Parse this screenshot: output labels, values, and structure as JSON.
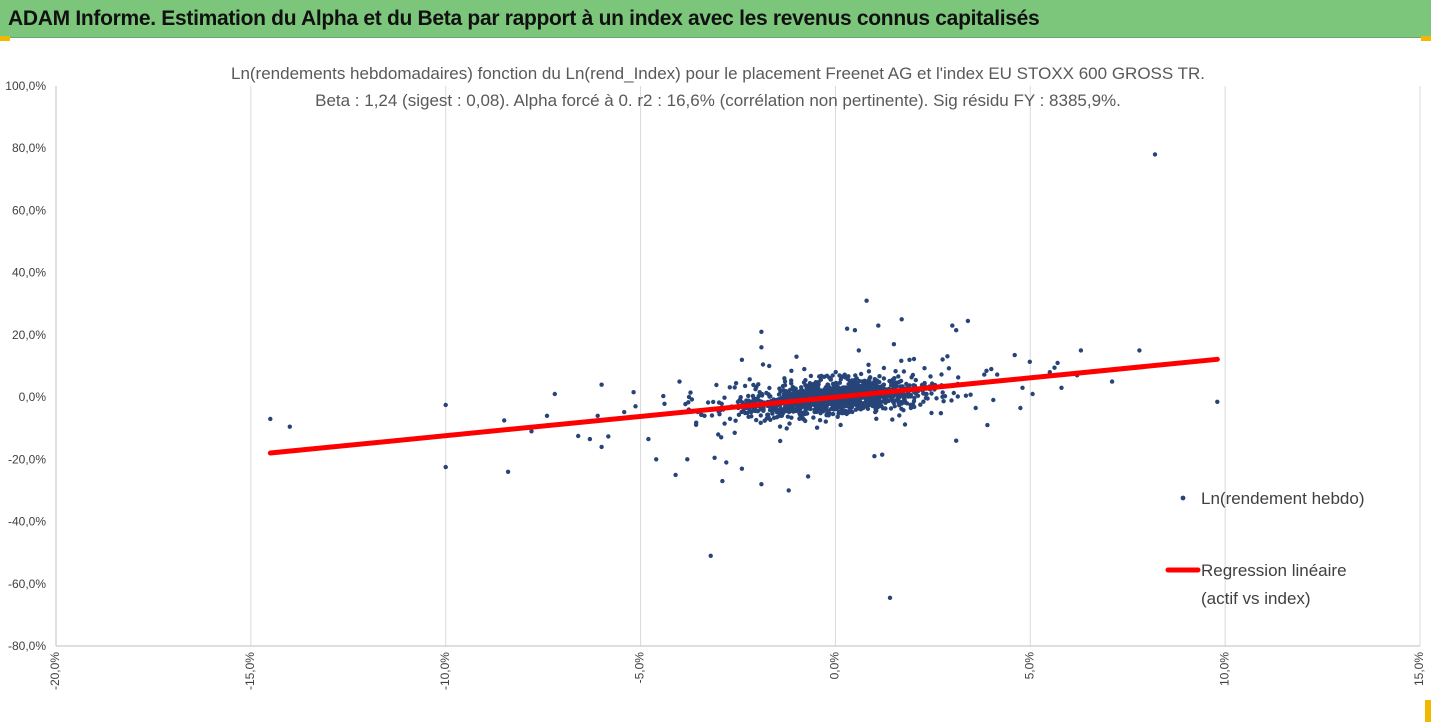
{
  "banner": {
    "title": "ADAM Informe. Estimation du Alpha et du Beta par rapport à un index avec les revenus connus capitalisés"
  },
  "colors": {
    "banner": "#7cc67b",
    "points": "#264478",
    "regression": "#ff0000",
    "corner_accent": "#f2b800"
  },
  "chart_data": {
    "type": "scatter",
    "title": "Ln(rendements hebdomadaires) fonction du Ln(rend_Index) pour le placement Freenet AG et l'index EU STOXX 600 GROSS TR.",
    "subtitle": "Beta : 1,24 (sigest : 0,08). Alpha forcé à 0. r2 : 16,6% (corrélation non pertinente). Sig résidu FY : 8385,9%.",
    "xlabel": "",
    "ylabel": "",
    "xlim": [
      -0.2,
      0.15
    ],
    "ylim": [
      -0.8,
      1.0
    ],
    "grid": "vertical",
    "legend_position": "right",
    "x_ticks": [
      -0.2,
      -0.15,
      -0.1,
      -0.05,
      0.0,
      0.05,
      0.1,
      0.15
    ],
    "x_tick_labels": [
      "-20,0%",
      "-15,0%",
      "-10,0%",
      "-5,0%",
      "0,0%",
      "5,0%",
      "10,0%",
      "15,0%"
    ],
    "y_ticks": [
      1.0,
      0.8,
      0.6,
      0.4,
      0.2,
      0.0,
      -0.2,
      -0.4,
      -0.6,
      -0.8
    ],
    "y_tick_labels": [
      "100,0%",
      "80,0%",
      "60,0%",
      "40,0%",
      "20,0%",
      "0,0%",
      "-20,0%",
      "-40,0%",
      "-60,0%",
      "-80,0%"
    ],
    "series": [
      {
        "name": "Ln(rendement hebdo)",
        "kind": "points",
        "outliers": [
          [
            0.082,
            0.78
          ],
          [
            -0.145,
            -0.07
          ],
          [
            -0.14,
            -0.095
          ],
          [
            -0.1,
            -0.025
          ],
          [
            -0.1,
            -0.225
          ],
          [
            -0.085,
            -0.075
          ],
          [
            -0.084,
            -0.24
          ],
          [
            -0.078,
            -0.11
          ],
          [
            -0.074,
            -0.06
          ],
          [
            -0.072,
            0.01
          ],
          [
            -0.066,
            -0.125
          ],
          [
            -0.063,
            -0.135
          ],
          [
            -0.061,
            -0.06
          ],
          [
            -0.06,
            0.04
          ],
          [
            -0.06,
            -0.16
          ],
          [
            -0.048,
            -0.135
          ],
          [
            -0.046,
            -0.2
          ],
          [
            -0.041,
            -0.25
          ],
          [
            -0.04,
            0.05
          ],
          [
            -0.038,
            -0.2
          ],
          [
            -0.032,
            -0.51
          ],
          [
            -0.031,
            -0.195
          ],
          [
            -0.029,
            -0.27
          ],
          [
            -0.028,
            -0.21
          ],
          [
            -0.024,
            -0.23
          ],
          [
            -0.024,
            0.12
          ],
          [
            -0.019,
            -0.28
          ],
          [
            -0.019,
            0.21
          ],
          [
            -0.019,
            0.16
          ],
          [
            -0.017,
            0.1
          ],
          [
            -0.012,
            -0.3
          ],
          [
            -0.01,
            0.13
          ],
          [
            -0.008,
            0.09
          ],
          [
            -0.007,
            -0.255
          ],
          [
            0.003,
            0.22
          ],
          [
            0.005,
            0.215
          ],
          [
            0.006,
            0.15
          ],
          [
            0.008,
            0.31
          ],
          [
            0.01,
            -0.19
          ],
          [
            0.011,
            0.23
          ],
          [
            0.012,
            -0.185
          ],
          [
            0.014,
            -0.645
          ],
          [
            0.015,
            0.17
          ],
          [
            0.017,
            0.25
          ],
          [
            0.019,
            0.12
          ],
          [
            0.03,
            0.23
          ],
          [
            0.031,
            0.215
          ],
          [
            0.031,
            -0.14
          ],
          [
            0.034,
            0.245
          ],
          [
            0.036,
            -0.035
          ],
          [
            0.039,
            -0.09
          ],
          [
            0.04,
            0.09
          ],
          [
            0.046,
            0.135
          ],
          [
            0.048,
            0.03
          ],
          [
            0.055,
            0.08
          ],
          [
            0.057,
            0.11
          ],
          [
            0.058,
            0.03
          ],
          [
            0.062,
            0.07
          ],
          [
            0.063,
            0.15
          ],
          [
            0.071,
            0.05
          ],
          [
            0.078,
            0.15
          ],
          [
            0.098,
            -0.015
          ]
        ]
      },
      {
        "name": "Regression linéaire",
        "name_line2": "(actif vs index)",
        "kind": "line",
        "beta": 1.24,
        "x_range": [
          -0.145,
          0.098
        ]
      }
    ]
  }
}
